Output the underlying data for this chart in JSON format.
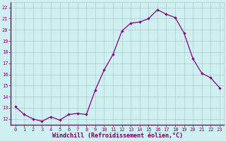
{
  "x": [
    0,
    1,
    2,
    3,
    4,
    5,
    6,
    7,
    8,
    9,
    10,
    11,
    12,
    13,
    14,
    15,
    16,
    17,
    18,
    19,
    20,
    21,
    22,
    23
  ],
  "y": [
    13.1,
    12.4,
    12.0,
    11.8,
    12.2,
    11.9,
    12.4,
    12.5,
    12.4,
    14.6,
    16.4,
    17.8,
    19.9,
    20.6,
    20.7,
    21.0,
    21.8,
    21.4,
    21.1,
    19.7,
    17.4,
    16.1,
    15.7,
    14.8
  ],
  "line_color": "#880088",
  "marker": "D",
  "marker_size": 2.2,
  "bg_color": "#cff0f0",
  "grid_color": "#b0c8c8",
  "axis_color": "#880088",
  "xlabel": "Windchill (Refroidissement éolien,°C)",
  "xlabel_color": "#660066",
  "tick_color": "#880088",
  "ylim": [
    11.5,
    22.5
  ],
  "xlim": [
    -0.5,
    23.5
  ],
  "yticks": [
    12,
    13,
    14,
    15,
    16,
    17,
    18,
    19,
    20,
    21,
    22
  ],
  "xticks": [
    0,
    1,
    2,
    3,
    4,
    5,
    6,
    7,
    8,
    9,
    10,
    11,
    12,
    13,
    14,
    15,
    16,
    17,
    18,
    19,
    20,
    21,
    22,
    23
  ],
  "tick_fontsize": 5.0,
  "xlabel_fontsize": 6.0
}
